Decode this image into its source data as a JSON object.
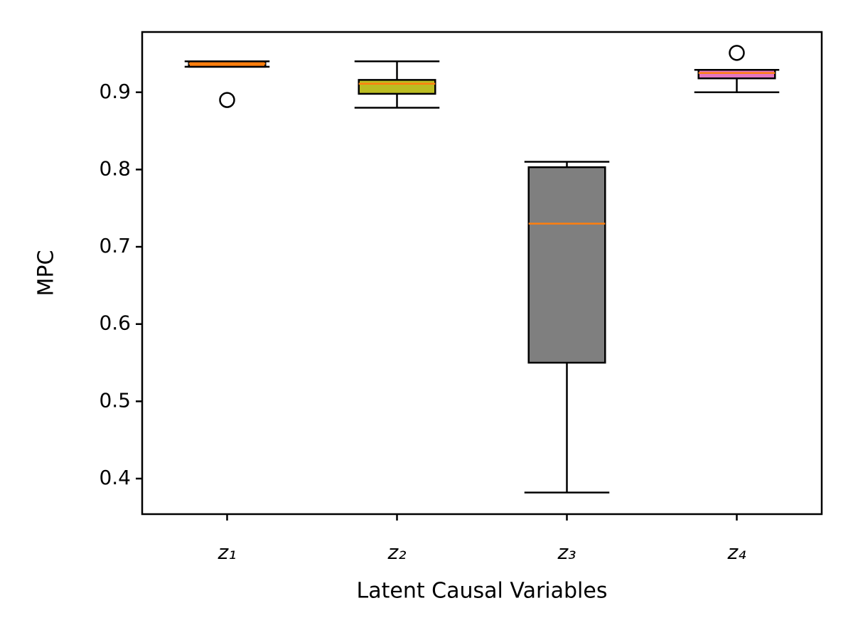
{
  "chart_data": {
    "type": "box",
    "xlabel": "Latent Causal Variables",
    "ylabel": "MPC",
    "categories": [
      "z₁",
      "z₂",
      "z₃",
      "z₄"
    ],
    "boxes": [
      {
        "whislo": 0.933,
        "q1": 0.933,
        "med": 0.937,
        "q3": 0.94,
        "whishi": 0.94,
        "fliers": [
          0.89
        ],
        "color": "#ff7f0e"
      },
      {
        "whislo": 0.88,
        "q1": 0.898,
        "med": 0.911,
        "q3": 0.916,
        "whishi": 0.94,
        "fliers": [],
        "color": "#bcbd22"
      },
      {
        "whislo": 0.382,
        "q1": 0.55,
        "med": 0.73,
        "q3": 0.803,
        "whishi": 0.81,
        "fliers": [],
        "color": "#7f7f7f"
      },
      {
        "whislo": 0.9,
        "q1": 0.918,
        "med": 0.925,
        "q3": 0.929,
        "whishi": 0.929,
        "fliers": [
          0.951
        ],
        "color": "#e377c2"
      }
    ],
    "median_color": "#ff7f0e",
    "ylim": [
      0.354,
      0.978
    ],
    "yticks": [
      0.4,
      0.5,
      0.6,
      0.7,
      0.8,
      0.9
    ]
  }
}
